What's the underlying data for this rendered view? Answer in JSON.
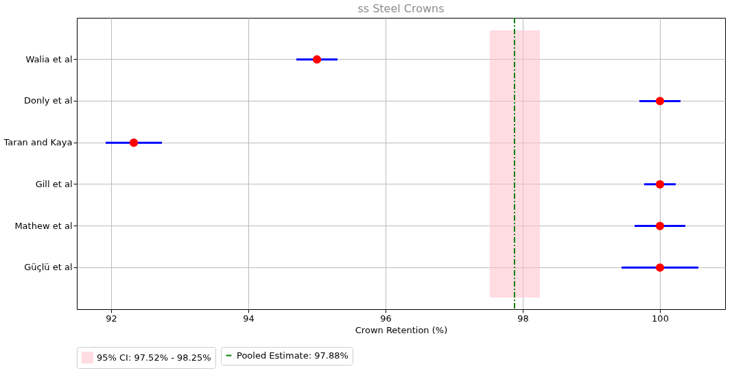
{
  "chart_data": {
    "type": "scatter",
    "orientation": "horizontal",
    "title": "ss Steel Crowns",
    "xlabel": "Crown Retention (%)",
    "categories": [
      "Walia et al",
      "Donly et al",
      "Taran and Kaya",
      "Gill et al",
      "Mathew et al",
      "Güçlü et al"
    ],
    "series": [
      {
        "color": "#ff0000",
        "values": [
          95.0,
          100.0,
          92.33,
          100.0,
          100.0,
          100.0
        ],
        "errors": [
          0.3,
          0.3,
          0.41,
          0.23,
          0.37,
          0.56
        ]
      }
    ],
    "xlim": [
      91.5,
      100.95
    ],
    "xticks": [
      92,
      94,
      96,
      98,
      100
    ],
    "ref_lines": [
      {
        "axis": "x",
        "value": 97.88,
        "label": "Pooled Estimate: 97.88%",
        "color": "#008000",
        "line_style": "dashdot"
      }
    ],
    "bands": [
      {
        "axis": "x",
        "from": 97.52,
        "to": 98.25,
        "label": "95% CI: 97.52% - 98.25%",
        "color": "#ffc0cb"
      }
    ],
    "grid": true,
    "legend": "bottom",
    "marker": "circle"
  }
}
